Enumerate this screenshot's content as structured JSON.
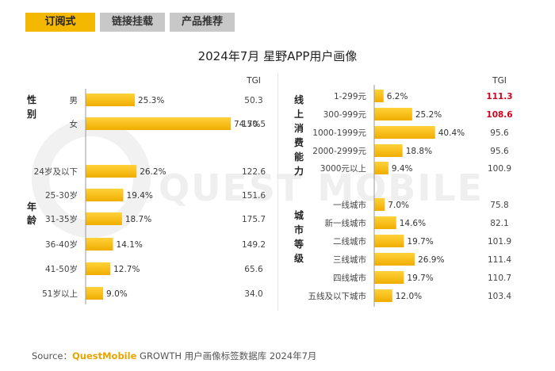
{
  "tabs": [
    {
      "label": "订阅式",
      "active": true
    },
    {
      "label": "链接挂载",
      "active": false
    },
    {
      "label": "产品推荐",
      "active": false
    }
  ],
  "title": "2024年7月 星野APP用户画像",
  "watermark": "QUEST MOBILE",
  "footer": {
    "source_label": "Source：",
    "brand": "QuestMobile",
    "rest": " GROWTH 用户画像标签数据库 2024年7月"
  },
  "colors": {
    "bar": "#f5b800",
    "tgi_highlight": "#d0021b",
    "text": "#333333"
  },
  "chart_data": [
    {
      "type": "bar",
      "orientation": "horizontal",
      "tgi_header": "TGI",
      "value_unit": "%",
      "groups": [
        {
          "label": "性别",
          "categories": [
            "男",
            "女"
          ],
          "values": [
            25.3,
            74.7
          ],
          "tgi": [
            50.3,
            150.5
          ]
        },
        {
          "label": "年龄",
          "categories": [
            "24岁及以下",
            "25-30岁",
            "31-35岁",
            "36-40岁",
            "41-50岁",
            "51岁以上"
          ],
          "values": [
            26.2,
            19.4,
            18.7,
            14.1,
            12.7,
            9.0
          ],
          "tgi": [
            122.6,
            151.6,
            175.7,
            149.2,
            65.6,
            34.0
          ]
        }
      ]
    },
    {
      "type": "bar",
      "orientation": "horizontal",
      "tgi_header": "TGI",
      "value_unit": "%",
      "groups": [
        {
          "label": "线上消费能力",
          "categories": [
            "1-299元",
            "300-999元",
            "1000-1999元",
            "2000-2999元",
            "3000元以上"
          ],
          "values": [
            6.2,
            25.2,
            40.4,
            18.8,
            9.4
          ],
          "tgi": [
            111.3,
            108.6,
            95.6,
            95.6,
            100.9
          ],
          "tgi_highlighted": [
            true,
            true,
            false,
            false,
            false
          ]
        },
        {
          "label": "城市等级",
          "categories": [
            "一线城市",
            "新一线城市",
            "二线城市",
            "三线城市",
            "四线城市",
            "五线及以下城市"
          ],
          "values": [
            7.0,
            14.6,
            19.7,
            26.9,
            19.7,
            12.0
          ],
          "tgi": [
            75.8,
            82.1,
            101.9,
            111.4,
            110.7,
            103.4
          ]
        }
      ]
    }
  ]
}
